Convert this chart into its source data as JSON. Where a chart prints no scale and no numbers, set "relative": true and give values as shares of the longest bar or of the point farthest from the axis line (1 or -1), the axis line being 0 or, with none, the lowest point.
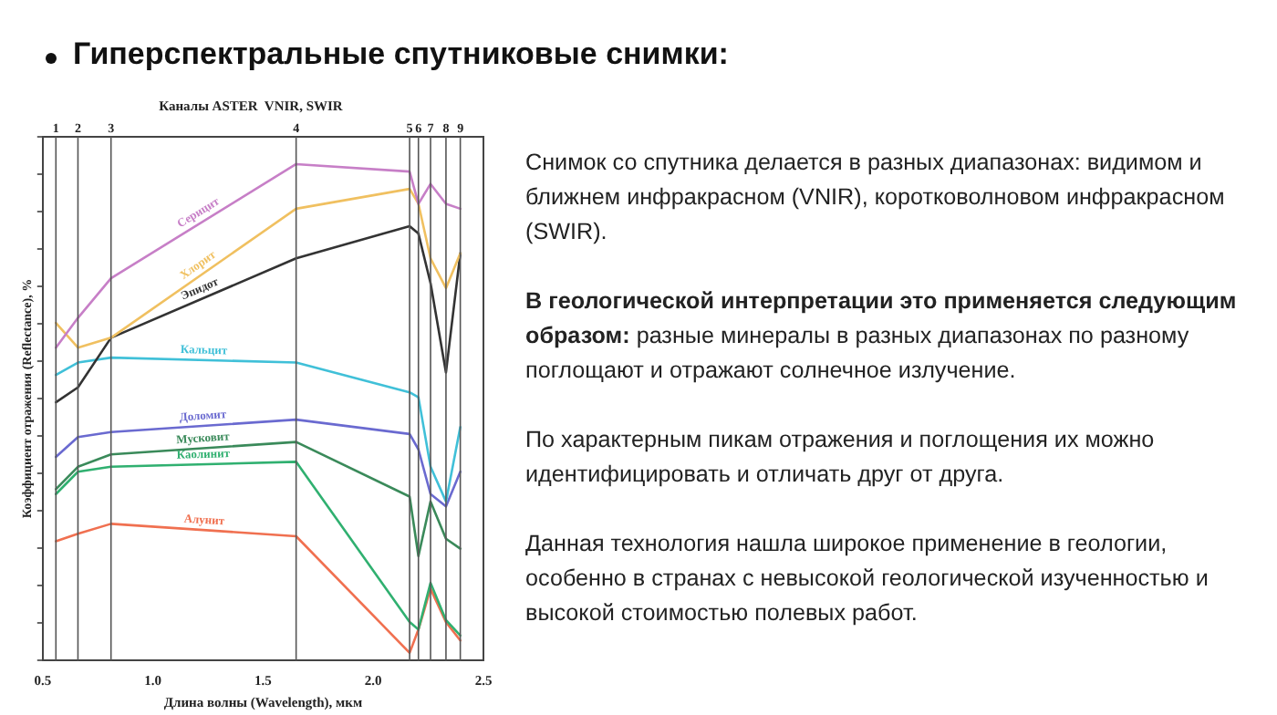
{
  "chart_data": {
    "type": "line",
    "title": "Гиперспектральные спутниковые снимки:",
    "subtitle": "Каналы ASTER  VNIR, SWIR",
    "xlabel": "Длина волны (Wavelength), мкм",
    "ylabel": "Коэффициент отражения (Reflectance), %",
    "relative": true,
    "x": [
      0.56,
      0.66,
      0.81,
      1.65,
      2.165,
      2.205,
      2.26,
      2.33,
      2.395
    ],
    "xlim": [
      0.5,
      2.5
    ],
    "xticks": [
      0.5,
      {
        "value": 1,
        "label": "1.0"
      },
      1.5,
      {
        "value": 2,
        "label": "2.0"
      },
      2.5
    ],
    "series": [
      {
        "name": "Серицит",
        "color": "#c77fc7",
        "values": [
          0.63,
          0.69,
          0.77,
          1.0,
          0.985,
          0.92,
          0.96,
          0.92,
          0.91
        ]
      },
      {
        "name": "Хлорит",
        "color": "#f0c060",
        "values": [
          0.68,
          0.63,
          0.65,
          0.91,
          0.95,
          0.92,
          0.81,
          0.75,
          0.82
        ]
      },
      {
        "name": "Эпидот",
        "color": "#333333",
        "values": [
          0.52,
          0.55,
          0.65,
          0.81,
          0.875,
          0.86,
          0.76,
          0.58,
          0.82
        ]
      },
      {
        "name": "Кальцит",
        "color": "#40c0d8",
        "values": [
          0.575,
          0.6,
          0.61,
          0.6,
          0.54,
          0.53,
          0.39,
          0.32,
          0.47
        ]
      },
      {
        "name": "Доломит",
        "color": "#6a6ad0",
        "values": [
          0.41,
          0.45,
          0.46,
          0.485,
          0.456,
          0.425,
          0.335,
          0.31,
          0.38
        ]
      },
      {
        "name": "Мусковит",
        "color": "#3a8a5a",
        "values": [
          0.345,
          0.39,
          0.415,
          0.44,
          0.33,
          0.21,
          0.32,
          0.245,
          0.225
        ]
      },
      {
        "name": "Каолинит",
        "color": "#30b070",
        "values": [
          0.335,
          0.38,
          0.39,
          0.4,
          0.077,
          0.062,
          0.156,
          0.081,
          0.05
        ]
      },
      {
        "name": "Алунит",
        "color": "#f07050",
        "values": [
          0.24,
          0.255,
          0.275,
          0.25,
          0.015,
          0.062,
          0.144,
          0.077,
          0.04
        ]
      }
    ],
    "ref_lines": [
      {
        "axis": "x",
        "value": 0.56
      },
      {
        "axis": "x",
        "value": 0.66
      },
      {
        "axis": "x",
        "value": 0.81
      },
      {
        "axis": "x",
        "value": 1.65
      },
      {
        "axis": "x",
        "value": 2.165
      },
      {
        "axis": "x",
        "value": 2.205
      },
      {
        "axis": "x",
        "value": 2.26
      },
      {
        "axis": "x",
        "value": 2.33
      },
      {
        "axis": "x",
        "value": 2.395
      }
    ],
    "annotations": [
      "Снимок со спутника делается в разных диапазонах: видимом и ближнем инфракрасном (VNIR), коротковолновом инфракрасном (SWIR).",
      "В геологической интерпретации это применяется следующим образом:",
      "разные минералы в разных диапазонах по разному поглощают и отражают солнечное излучение.",
      "По характерным пикам отражения и поглощения их можно идентифицировать и отличать друг от друга.",
      "Данная технология нашла широкое применение в геологии, особенно в странах с невысокой геологической изученностью и высокой стоимостью полевых работ.",
      {
        "text": "1",
        "x": 0.56
      },
      {
        "text": "2",
        "x": 0.66
      },
      {
        "text": "3",
        "x": 0.81
      },
      {
        "text": "4",
        "x": 1.65
      },
      {
        "text": "5",
        "x": 2.165
      },
      {
        "text": "6",
        "x": 2.205
      },
      {
        "text": "7",
        "x": 2.26
      },
      {
        "text": "8",
        "x": 2.33
      },
      {
        "text": "9",
        "x": 2.395
      }
    ],
    "grid": false,
    "legend": false,
    "marker": "none",
    "line_style": "solid"
  }
}
